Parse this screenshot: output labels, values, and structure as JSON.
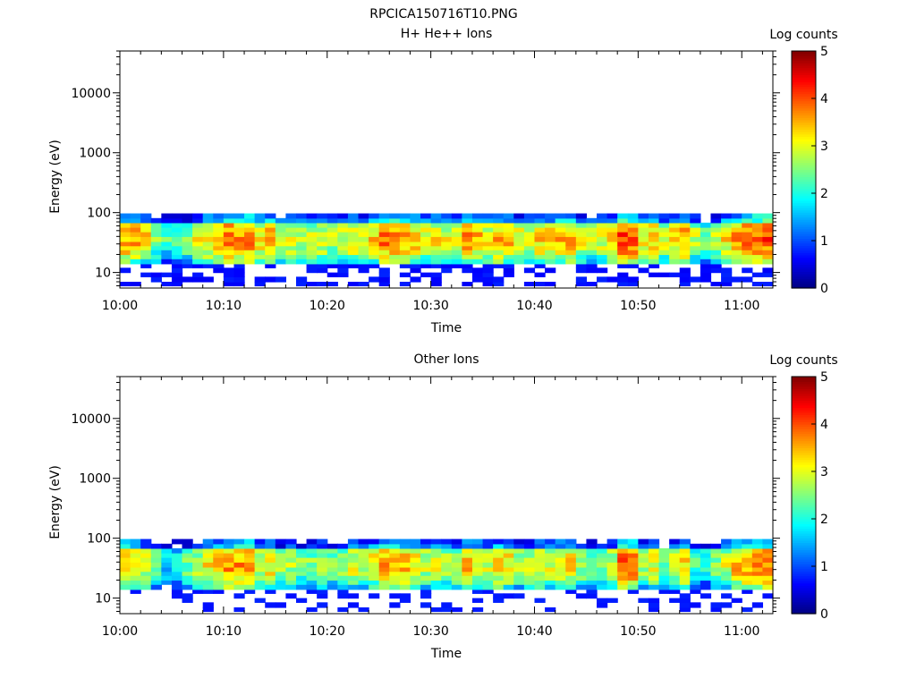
{
  "figure_title": "RPCICA150716T10.PNG",
  "chart_data": [
    {
      "type": "heatmap",
      "title": "H+ He++ Ions",
      "xlabel": "Time",
      "ylabel": "Energy (eV)",
      "x_ticks": [
        "10:00",
        "10:10",
        "10:20",
        "10:30",
        "10:40",
        "10:50",
        "11:00"
      ],
      "x_range": [
        "10:00",
        "11:03"
      ],
      "y_scale": "log",
      "y_ticks": [
        "10",
        "100",
        "1000",
        "10000"
      ],
      "y_range": [
        5.5,
        50000
      ],
      "colorbar_label": "Log counts",
      "colorbar_ticks": [
        "0",
        "1",
        "2",
        "3",
        "4",
        "5"
      ],
      "colorbar_range": [
        0,
        5
      ],
      "time_bins": 63,
      "energy_bin_edges_ev": [
        6,
        7,
        8.5,
        10,
        12,
        14,
        17,
        20,
        24,
        28,
        33,
        40,
        48,
        57,
        68,
        81,
        97
      ],
      "log_counts_estimate": "Band between about 15 and 100 eV; peak ~4 log counts near 30-45 eV; near 0-1 below 15 eV; empty above 100 eV",
      "mean_log_counts_by_minute": [
        3.6,
        3.5,
        3.2,
        2.6,
        2.2,
        2.3,
        2.6,
        3.0,
        3.3,
        3.5,
        3.8,
        3.7,
        3.8,
        3.2,
        3.4,
        2.9,
        3.0,
        2.8,
        2.9,
        3.0,
        2.8,
        3.0,
        3.2,
        3.0,
        3.3,
        3.8,
        3.7,
        3.6,
        3.4,
        3.1,
        3.2,
        3.0,
        3.0,
        3.6,
        3.4,
        3.1,
        3.5,
        3.4,
        3.0,
        3.1,
        3.3,
        3.2,
        3.4,
        3.5,
        3.0,
        2.8,
        3.0,
        3.3,
        4.1,
        4.0,
        3.1,
        3.4,
        2.9,
        3.3,
        3.6,
        2.8,
        2.4,
        2.9,
        3.2,
        3.6,
        3.8,
        3.9,
        4.0
      ]
    },
    {
      "type": "heatmap",
      "title": "Other Ions",
      "xlabel": "Time",
      "ylabel": "Energy (eV)",
      "x_ticks": [
        "10:00",
        "10:10",
        "10:20",
        "10:30",
        "10:40",
        "10:50",
        "11:00"
      ],
      "x_range": [
        "10:00",
        "11:03"
      ],
      "y_scale": "log",
      "y_ticks": [
        "10",
        "100",
        "1000",
        "10000"
      ],
      "y_range": [
        5.5,
        50000
      ],
      "colorbar_label": "Log counts",
      "colorbar_ticks": [
        "0",
        "1",
        "2",
        "3",
        "4",
        "5"
      ],
      "colorbar_range": [
        0,
        5
      ],
      "time_bins": 63,
      "energy_bin_edges_ev": [
        6,
        7,
        8.5,
        10,
        12,
        14,
        17,
        20,
        24,
        28,
        33,
        40,
        48,
        57,
        68,
        81,
        97
      ],
      "log_counts_estimate": "Band between about 15 and 100 eV, sparser and weaker than H+; peak ~4 log counts near 30-45 eV; sparse dark-blue cells below 15 eV",
      "mean_log_counts_by_minute": [
        3.6,
        3.4,
        3.0,
        2.4,
        1.8,
        2.0,
        2.4,
        2.8,
        3.1,
        3.3,
        3.7,
        3.6,
        3.7,
        3.0,
        3.2,
        2.6,
        2.7,
        2.5,
        2.6,
        2.8,
        2.5,
        2.8,
        3.0,
        2.8,
        3.1,
        3.6,
        3.5,
        3.4,
        3.2,
        2.9,
        3.0,
        2.8,
        2.8,
        3.4,
        3.2,
        2.9,
        3.3,
        3.2,
        2.7,
        2.9,
        3.1,
        3.0,
        3.2,
        3.3,
        2.7,
        2.4,
        2.6,
        2.9,
        3.9,
        3.8,
        2.7,
        3.0,
        2.4,
        2.8,
        3.3,
        2.3,
        2.0,
        2.5,
        2.9,
        3.4,
        3.6,
        3.7,
        3.8
      ]
    }
  ]
}
